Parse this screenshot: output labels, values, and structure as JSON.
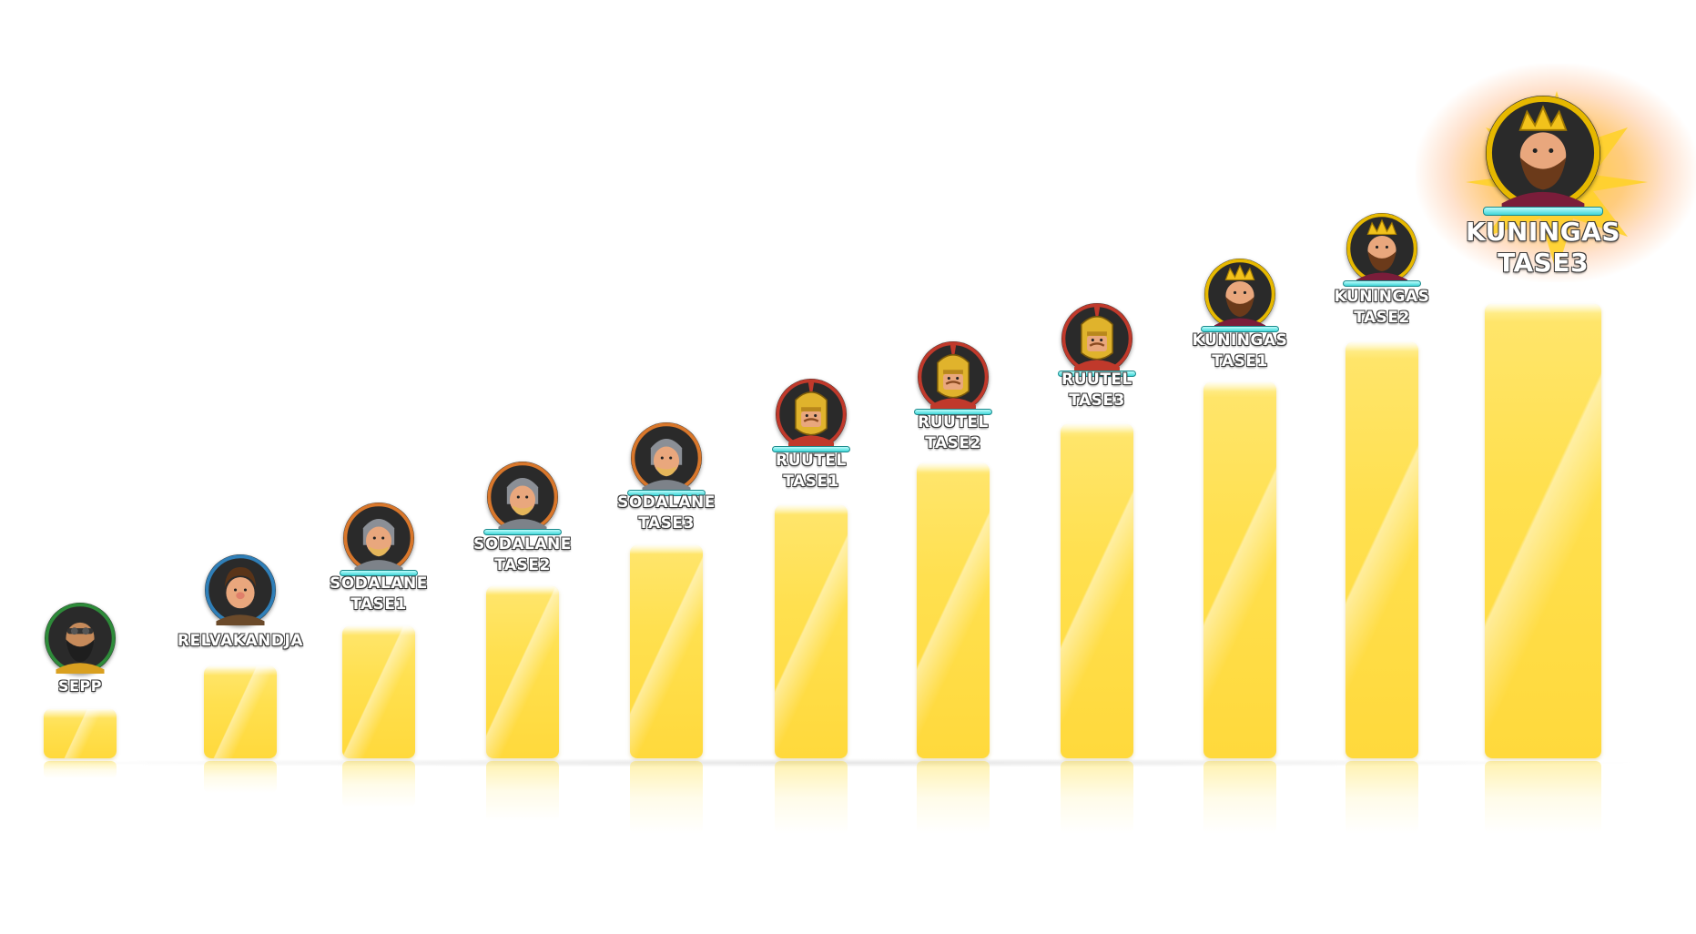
{
  "chart_data": {
    "type": "bar",
    "categories": [
      "SEPP",
      "RELVAKANDJA",
      "SODALANE TASE 1",
      "SODALANE TASE 2",
      "SODALANE TASE 3",
      "RUUTEL TASE 1",
      "RUUTEL TASE 2",
      "RUUTEL TASE 3",
      "KUNINGAS TASE 1",
      "KUNINGAS TASE 2",
      "KUNINGAS TASE 3"
    ],
    "values": [
      1,
      2,
      3,
      4,
      5,
      6,
      7,
      8,
      9,
      10,
      11
    ],
    "title": "",
    "xlabel": "",
    "ylabel": "",
    "grid": false
  },
  "ranks": [
    {
      "name": "SEPP",
      "tier": "",
      "icon": "blacksmith-avatar-icon",
      "ring": "#2e8b3a",
      "skin": "#c68a5a",
      "hair": "#222222",
      "helmet": "none",
      "beard": "#1e1e1e"
    },
    {
      "name": "RELVAKANDJA",
      "tier": "",
      "icon": "squire-avatar-icon",
      "ring": "#2f7fb8",
      "skin": "#e9a77d",
      "hair": "#5a3418",
      "helmet": "none",
      "beard": ""
    },
    {
      "name": "SODALANE",
      "tier": "TASE1",
      "icon": "soldier-avatar-icon",
      "ring": "#d9772b",
      "skin": "#e9a77d",
      "hair": "",
      "helmet": "#8b8f96",
      "beard": "#e5b65a"
    },
    {
      "name": "SODALANE",
      "tier": "TASE2",
      "icon": "soldier-avatar-icon",
      "ring": "#d9772b",
      "skin": "#e9a77d",
      "hair": "",
      "helmet": "#8b8f96",
      "beard": "#e5b65a"
    },
    {
      "name": "SODALANE",
      "tier": "TASE3",
      "icon": "soldier-avatar-icon",
      "ring": "#d9772b",
      "skin": "#e9a77d",
      "hair": "",
      "helmet": "#8b8f96",
      "beard": "#e5b65a"
    },
    {
      "name": "RUUTEL",
      "tier": "TASE1",
      "icon": "knight-avatar-icon",
      "ring": "#c0392b",
      "skin": "#e9a77d",
      "hair": "",
      "helmet": "#e0b32c",
      "beard": ""
    },
    {
      "name": "RUUTEL",
      "tier": "TASE2",
      "icon": "knight-avatar-icon",
      "ring": "#c0392b",
      "skin": "#e9a77d",
      "hair": "",
      "helmet": "#e0b32c",
      "beard": ""
    },
    {
      "name": "RUUTEL",
      "tier": "TASE3",
      "icon": "knight-avatar-icon",
      "ring": "#c0392b",
      "skin": "#e9a77d",
      "hair": "",
      "helmet": "#e0b32c",
      "beard": ""
    },
    {
      "name": "KUNINGAS",
      "tier": "TASE1",
      "icon": "king-avatar-icon",
      "ring": "#e6b800",
      "skin": "#e9a77d",
      "hair": "#6b3a1a",
      "helmet": "crown",
      "beard": "#6b3a1a"
    },
    {
      "name": "KUNINGAS",
      "tier": "TASE2",
      "icon": "king-avatar-icon",
      "ring": "#e6b800",
      "skin": "#e9a77d",
      "hair": "#6b3a1a",
      "helmet": "crown",
      "beard": "#6b3a1a"
    },
    {
      "name": "KUNINGAS",
      "tier": "TASE3",
      "icon": "king-avatar-icon",
      "ring": "#e6b800",
      "skin": "#e9a77d",
      "hair": "#6b3a1a",
      "helmet": "crown",
      "beard": "#6b3a1a"
    }
  ],
  "colors": {
    "bar": "#ffde4a",
    "xp_bar": "#6ee6e8",
    "label_outline": "#3a3a3a",
    "highlight_glow": "#ffb830"
  }
}
